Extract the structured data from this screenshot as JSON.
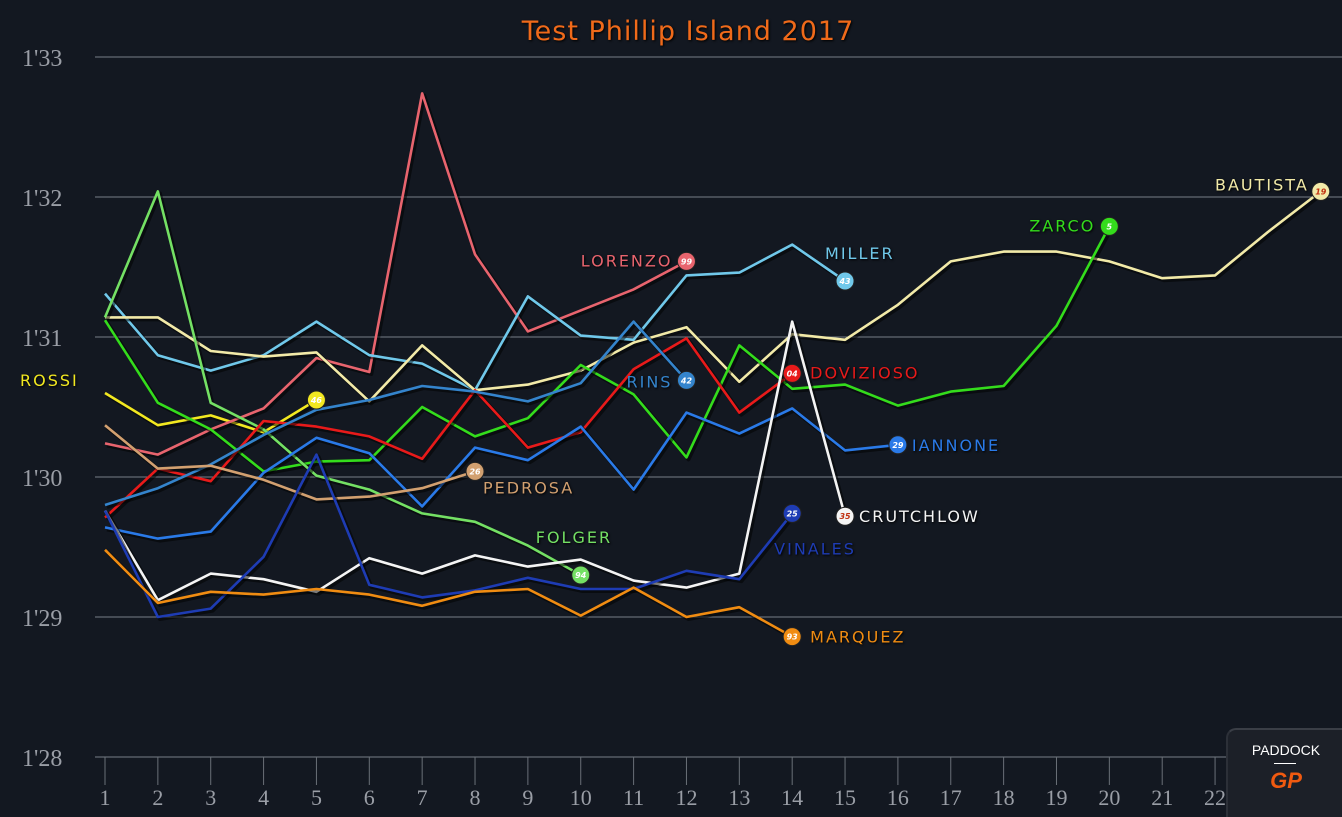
{
  "chart_data": {
    "type": "line",
    "title": "Test Phillip Island 2017",
    "xlabel": "",
    "ylabel": "",
    "ylim": [
      88,
      93
    ],
    "yticks": [
      "1'28",
      "1'29",
      "1'30",
      "1'31",
      "1'32",
      "1'33"
    ],
    "xticks": [
      "1",
      "2",
      "3",
      "4",
      "5",
      "6",
      "7",
      "8",
      "9",
      "10",
      "11",
      "12",
      "13",
      "14",
      "15",
      "16",
      "17",
      "18",
      "19",
      "20",
      "21",
      "22"
    ],
    "grid": true,
    "series": [
      {
        "name": "ROSSI",
        "number": "46",
        "color": "#f2e820",
        "values": [
          90.6,
          90.37,
          90.44,
          90.32,
          90.55
        ]
      },
      {
        "name": "LORENZO",
        "number": "99",
        "color": "#e8646e",
        "values": [
          90.24,
          90.16,
          90.34,
          90.49,
          90.85,
          90.75,
          92.74,
          91.59,
          91.04,
          91.19,
          91.34,
          91.54
        ]
      },
      {
        "name": "MILLER",
        "number": "43",
        "color": "#70c8ea",
        "values": [
          91.31,
          90.87,
          90.76,
          90.87,
          91.11,
          90.87,
          90.81,
          90.62,
          91.29,
          91.01,
          90.98,
          91.44,
          91.46,
          91.66,
          91.4
        ]
      },
      {
        "name": "BAUTISTA",
        "number": "19",
        "color": "#f2eaa8",
        "values": [
          91.14,
          91.14,
          90.9,
          90.86,
          90.89,
          90.54,
          90.94,
          90.62,
          90.66,
          90.76,
          90.96,
          91.07,
          90.68,
          91.02,
          90.98,
          91.23,
          91.54,
          91.61,
          91.61,
          91.54,
          91.42,
          91.44,
          91.75,
          92.04
        ]
      },
      {
        "name": "ZARCO",
        "number": "5",
        "color": "#34dc1c",
        "values": [
          91.12,
          90.53,
          90.34,
          90.04,
          90.11,
          90.12,
          90.5,
          90.29,
          90.42,
          90.8,
          90.59,
          90.14,
          90.94,
          90.63,
          90.66,
          90.51,
          90.61,
          90.65,
          91.08,
          91.79
        ]
      },
      {
        "name": "FOLGER",
        "number": "94",
        "color": "#74e064",
        "values": [
          91.14,
          92.04,
          90.53,
          90.34,
          90.01,
          89.91,
          89.74,
          89.68,
          89.51,
          89.3
        ]
      },
      {
        "name": "DOVIZIOSO",
        "number": "04",
        "color": "#e81a1a",
        "values": [
          89.71,
          90.06,
          89.97,
          90.4,
          90.36,
          90.29,
          90.13,
          90.62,
          90.21,
          90.32,
          90.77,
          90.99,
          90.46,
          90.74
        ]
      },
      {
        "name": "RINS",
        "number": "42",
        "color": "#3484cc",
        "values": [
          89.8,
          89.92,
          90.09,
          90.3,
          90.48,
          90.55,
          90.65,
          90.61,
          90.54,
          90.67,
          91.11,
          90.69
        ]
      },
      {
        "name": "IANNONE",
        "number": "29",
        "color": "#2a7ae8",
        "values": [
          89.64,
          89.56,
          89.61,
          90.03,
          90.28,
          90.17,
          89.79,
          90.21,
          90.12,
          90.36,
          89.91,
          90.46,
          90.31,
          90.49,
          90.19,
          90.23
        ]
      },
      {
        "name": "PEDROSA",
        "number": "26",
        "color": "#d2a070",
        "values": [
          90.37,
          90.06,
          90.08,
          89.98,
          89.84,
          89.86,
          89.92,
          90.04
        ]
      },
      {
        "name": "CRUTCHLOW",
        "number": "35",
        "color": "#f4f4f4",
        "values": [
          89.76,
          89.12,
          89.31,
          89.27,
          89.18,
          89.42,
          89.31,
          89.44,
          89.36,
          89.41,
          89.26,
          89.21,
          89.31,
          91.11,
          89.72
        ]
      },
      {
        "name": "VINALES",
        "number": "25",
        "color": "#1e3cb4",
        "values": [
          89.76,
          89.0,
          89.06,
          89.43,
          90.16,
          89.23,
          89.14,
          89.19,
          89.28,
          89.2,
          89.2,
          89.33,
          89.27,
          89.74
        ]
      },
      {
        "name": "MARQUEZ",
        "number": "93",
        "color": "#f08c12",
        "values": [
          89.48,
          89.1,
          89.18,
          89.16,
          89.2,
          89.16,
          89.08,
          89.18,
          89.2,
          89.01,
          89.21,
          89.0,
          89.07,
          88.86
        ]
      }
    ]
  },
  "logo": {
    "top": "PADDOCK",
    "bottom": "GP"
  }
}
